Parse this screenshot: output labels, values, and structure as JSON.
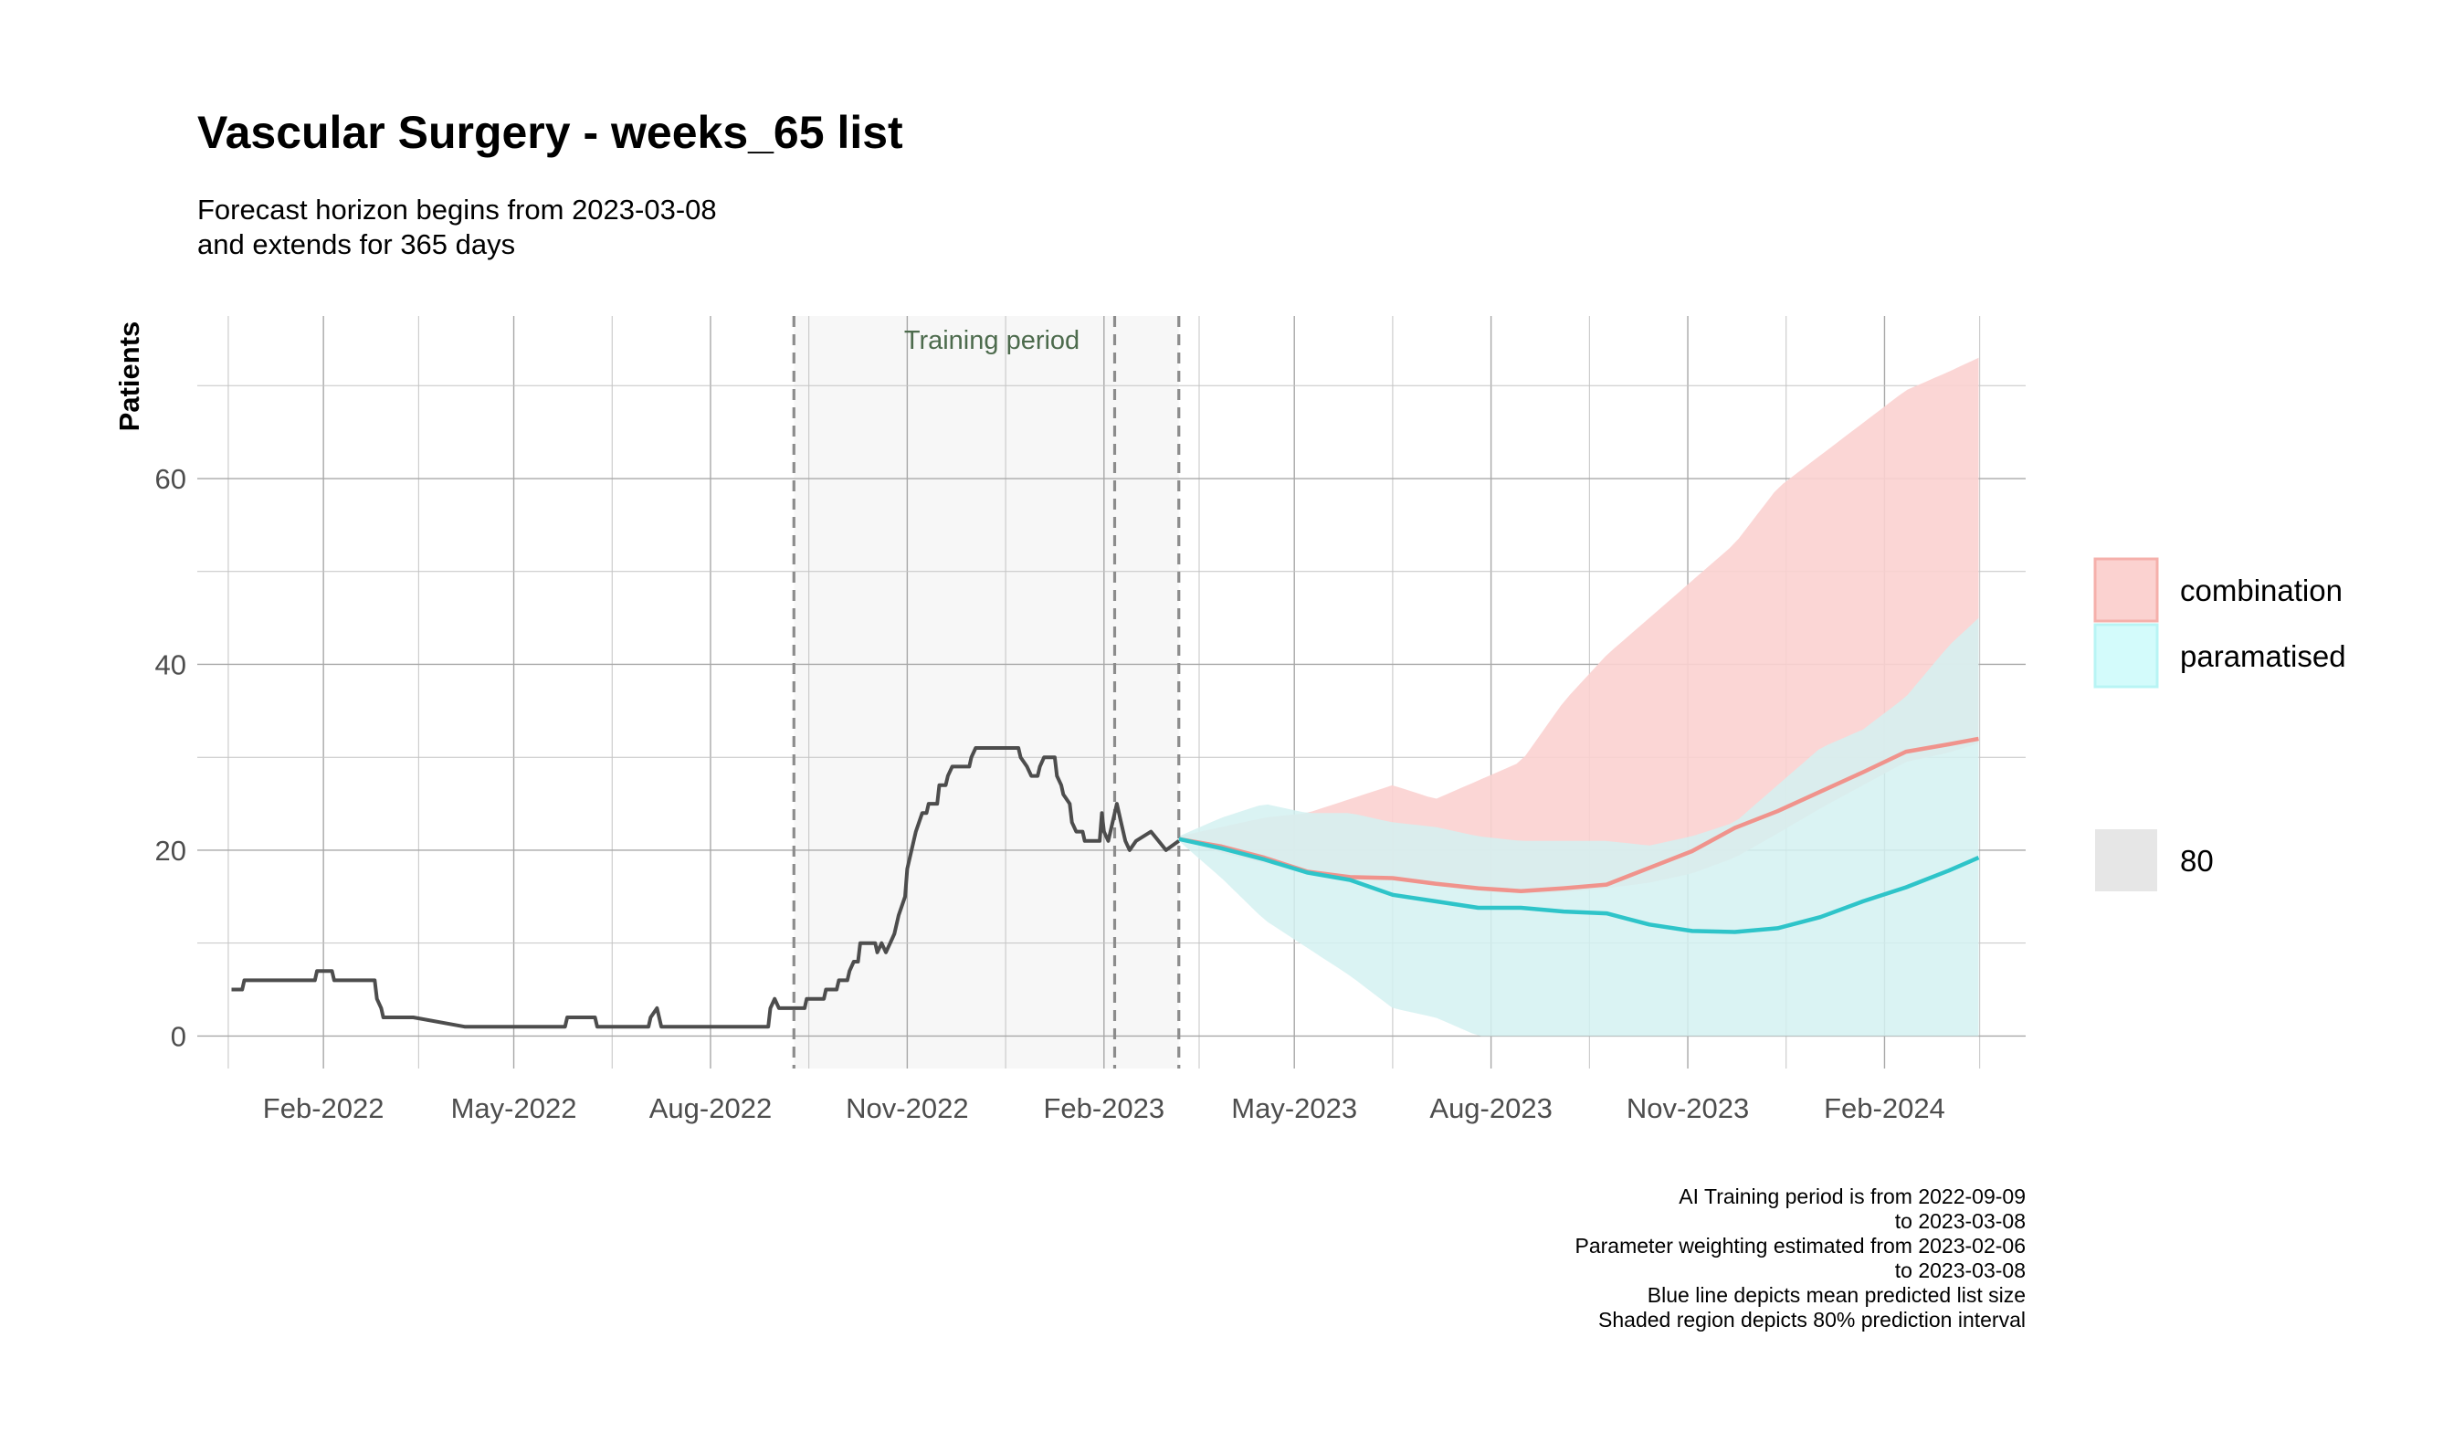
{
  "chart_data": {
    "type": "line",
    "title": "Vascular Surgery - weeks_65 list",
    "subtitle_lines": [
      "Forecast horizon begins from 2023-03-08",
      "and extends for 365 days"
    ],
    "ylabel": "Patients",
    "xlabel": "",
    "x_ticks": [
      {
        "date": "2022-02-01",
        "label": "Feb-2022"
      },
      {
        "date": "2022-05-01",
        "label": "May-2022"
      },
      {
        "date": "2022-08-01",
        "label": "Aug-2022"
      },
      {
        "date": "2022-11-01",
        "label": "Nov-2022"
      },
      {
        "date": "2023-02-01",
        "label": "Feb-2023"
      },
      {
        "date": "2023-05-01",
        "label": "May-2023"
      },
      {
        "date": "2023-08-01",
        "label": "Aug-2023"
      },
      {
        "date": "2023-11-01",
        "label": "Nov-2023"
      },
      {
        "date": "2024-02-01",
        "label": "Feb-2024"
      }
    ],
    "y_ticks": [
      0,
      20,
      40,
      60
    ],
    "xlim": [
      "2021-12-04",
      "2024-04-07"
    ],
    "ylim": [
      -3.5,
      77.5
    ],
    "grid": true,
    "training_period": {
      "start": "2022-09-09",
      "end": "2023-03-08",
      "label": "Training period"
    },
    "vlines_dashed": [
      "2022-09-09",
      "2023-02-06",
      "2023-03-08"
    ],
    "history": {
      "name": "",
      "color": "#4d4d4d",
      "points": [
        [
          "2021-12-20",
          5
        ],
        [
          "2021-12-25",
          5
        ],
        [
          "2021-12-26",
          6
        ],
        [
          "2022-01-28",
          6
        ],
        [
          "2022-01-29",
          7
        ],
        [
          "2022-02-05",
          7
        ],
        [
          "2022-02-06",
          6
        ],
        [
          "2022-02-25",
          6
        ],
        [
          "2022-02-26",
          4
        ],
        [
          "2022-02-28",
          3
        ],
        [
          "2022-03-01",
          2
        ],
        [
          "2022-03-15",
          2
        ],
        [
          "2022-04-08",
          1
        ],
        [
          "2022-05-25",
          1
        ],
        [
          "2022-05-26",
          2
        ],
        [
          "2022-06-08",
          2
        ],
        [
          "2022-06-09",
          1
        ],
        [
          "2022-07-03",
          1
        ],
        [
          "2022-07-04",
          2
        ],
        [
          "2022-07-07",
          3
        ],
        [
          "2022-07-09",
          1
        ],
        [
          "2022-08-28",
          1
        ],
        [
          "2022-08-29",
          3
        ],
        [
          "2022-08-31",
          4
        ],
        [
          "2022-09-02",
          3
        ],
        [
          "2022-09-14",
          3
        ],
        [
          "2022-09-15",
          4
        ],
        [
          "2022-09-23",
          4
        ],
        [
          "2022-09-24",
          5
        ],
        [
          "2022-09-29",
          5
        ],
        [
          "2022-09-30",
          6
        ],
        [
          "2022-10-04",
          6
        ],
        [
          "2022-10-05",
          7
        ],
        [
          "2022-10-07",
          8
        ],
        [
          "2022-10-09",
          8
        ],
        [
          "2022-10-10",
          10
        ],
        [
          "2022-10-17",
          10
        ],
        [
          "2022-10-18",
          9
        ],
        [
          "2022-10-20",
          10
        ],
        [
          "2022-10-22",
          9
        ],
        [
          "2022-10-24",
          10
        ],
        [
          "2022-10-26",
          11
        ],
        [
          "2022-10-28",
          13
        ],
        [
          "2022-10-31",
          15
        ],
        [
          "2022-11-01",
          18
        ],
        [
          "2022-11-03",
          20
        ],
        [
          "2022-11-05",
          22
        ],
        [
          "2022-11-08",
          24
        ],
        [
          "2022-11-10",
          24
        ],
        [
          "2022-11-11",
          25
        ],
        [
          "2022-11-15",
          25
        ],
        [
          "2022-11-16",
          27
        ],
        [
          "2022-11-19",
          27
        ],
        [
          "2022-11-20",
          28
        ],
        [
          "2022-11-22",
          29
        ],
        [
          "2022-11-30",
          29
        ],
        [
          "2022-12-01",
          30
        ],
        [
          "2022-12-03",
          31
        ],
        [
          "2022-12-23",
          31
        ],
        [
          "2022-12-24",
          30
        ],
        [
          "2022-12-27",
          29
        ],
        [
          "2022-12-29",
          28
        ],
        [
          "2023-01-01",
          28
        ],
        [
          "2023-01-02",
          29
        ],
        [
          "2023-01-04",
          30
        ],
        [
          "2023-01-09",
          30
        ],
        [
          "2023-01-10",
          28
        ],
        [
          "2023-01-12",
          27
        ],
        [
          "2023-01-13",
          26
        ],
        [
          "2023-01-16",
          25
        ],
        [
          "2023-01-17",
          23
        ],
        [
          "2023-01-19",
          22
        ],
        [
          "2023-01-22",
          22
        ],
        [
          "2023-01-23",
          21
        ],
        [
          "2023-01-30",
          21
        ],
        [
          "2023-01-31",
          24
        ],
        [
          "2023-02-01",
          22
        ],
        [
          "2023-02-03",
          21
        ],
        [
          "2023-02-07",
          25
        ],
        [
          "2023-02-09",
          23
        ],
        [
          "2023-02-11",
          21
        ],
        [
          "2023-02-13",
          20
        ],
        [
          "2023-02-16",
          21
        ],
        [
          "2023-02-23",
          22
        ],
        [
          "2023-03-02",
          20
        ],
        [
          "2023-03-08",
          21
        ]
      ]
    },
    "forecast_band_level": "80",
    "series": [
      {
        "name": "combination",
        "line_color": "#f0938c",
        "band_color": "#fbd2d0",
        "mean": [
          [
            "2023-03-08",
            21.2
          ],
          [
            "2023-03-28",
            20.4
          ],
          [
            "2023-04-17",
            19.2
          ],
          [
            "2023-05-07",
            17.7
          ],
          [
            "2023-05-27",
            17.1
          ],
          [
            "2023-06-16",
            17.0
          ],
          [
            "2023-07-06",
            16.4
          ],
          [
            "2023-07-26",
            15.9
          ],
          [
            "2023-08-15",
            15.6
          ],
          [
            "2023-09-04",
            15.9
          ],
          [
            "2023-09-24",
            16.3
          ],
          [
            "2023-10-14",
            18.1
          ],
          [
            "2023-11-03",
            19.9
          ],
          [
            "2023-11-23",
            22.4
          ],
          [
            "2023-12-13",
            24.2
          ],
          [
            "2024-01-02",
            26.3
          ],
          [
            "2024-01-22",
            28.4
          ],
          [
            "2024-02-11",
            30.6
          ],
          [
            "2024-03-02",
            31.4
          ],
          [
            "2024-03-16",
            32.0
          ]
        ],
        "lower": [
          [
            "2023-03-08",
            21.2
          ],
          [
            "2023-03-28",
            19.7
          ],
          [
            "2023-04-17",
            18.6
          ],
          [
            "2023-05-07",
            17.5
          ],
          [
            "2023-05-27",
            17.0
          ],
          [
            "2023-06-16",
            16.8
          ],
          [
            "2023-07-06",
            16.2
          ],
          [
            "2023-07-26",
            15.6
          ],
          [
            "2023-08-15",
            15.3
          ],
          [
            "2023-09-04",
            15.5
          ],
          [
            "2023-09-24",
            15.9
          ],
          [
            "2023-10-14",
            16.5
          ],
          [
            "2023-11-03",
            17.5
          ],
          [
            "2023-11-23",
            19.2
          ],
          [
            "2023-12-13",
            21.8
          ],
          [
            "2024-01-02",
            24.5
          ],
          [
            "2024-01-22",
            27.0
          ],
          [
            "2024-02-11",
            29.5
          ],
          [
            "2024-03-02",
            30.5
          ],
          [
            "2024-03-16",
            31.5
          ]
        ],
        "upper": [
          [
            "2023-03-08",
            21.5
          ],
          [
            "2023-03-28",
            22.5
          ],
          [
            "2023-04-17",
            23.5
          ],
          [
            "2023-05-07",
            24.0
          ],
          [
            "2023-05-27",
            25.5
          ],
          [
            "2023-06-16",
            27.0
          ],
          [
            "2023-07-06",
            25.5
          ],
          [
            "2023-07-26",
            27.5
          ],
          [
            "2023-08-15",
            29.5
          ],
          [
            "2023-09-04",
            36.0
          ],
          [
            "2023-09-24",
            41.0
          ],
          [
            "2023-10-14",
            45.0
          ],
          [
            "2023-11-03",
            49.0
          ],
          [
            "2023-11-23",
            53.0
          ],
          [
            "2023-12-13",
            59.0
          ],
          [
            "2024-01-02",
            62.5
          ],
          [
            "2024-01-22",
            66.0
          ],
          [
            "2024-02-11",
            69.5
          ],
          [
            "2024-03-02",
            71.5
          ],
          [
            "2024-03-16",
            73.0
          ]
        ]
      },
      {
        "name": "paramatised",
        "line_color": "#2ec4c9",
        "band_color": "#d3f1f1",
        "mean": [
          [
            "2023-03-08",
            21.2
          ],
          [
            "2023-03-28",
            20.2
          ],
          [
            "2023-04-17",
            19.0
          ],
          [
            "2023-05-07",
            17.6
          ],
          [
            "2023-05-27",
            16.8
          ],
          [
            "2023-06-16",
            15.2
          ],
          [
            "2023-07-06",
            14.5
          ],
          [
            "2023-07-26",
            13.8
          ],
          [
            "2023-08-15",
            13.8
          ],
          [
            "2023-09-04",
            13.4
          ],
          [
            "2023-09-24",
            13.2
          ],
          [
            "2023-10-14",
            12.0
          ],
          [
            "2023-11-03",
            11.3
          ],
          [
            "2023-11-23",
            11.2
          ],
          [
            "2023-12-13",
            11.6
          ],
          [
            "2024-01-02",
            12.8
          ],
          [
            "2024-01-22",
            14.5
          ],
          [
            "2024-02-11",
            16.0
          ],
          [
            "2024-03-02",
            17.8
          ],
          [
            "2024-03-16",
            19.2
          ]
        ],
        "lower": [
          [
            "2023-03-08",
            21.0
          ],
          [
            "2023-03-28",
            17.0
          ],
          [
            "2023-04-17",
            12.5
          ],
          [
            "2023-05-07",
            9.5
          ],
          [
            "2023-05-27",
            6.5
          ],
          [
            "2023-06-16",
            3.0
          ],
          [
            "2023-07-06",
            2.0
          ],
          [
            "2023-07-26",
            0.0
          ],
          [
            "2024-03-16",
            0.0
          ]
        ],
        "upper": [
          [
            "2023-03-08",
            21.5
          ],
          [
            "2023-03-28",
            23.5
          ],
          [
            "2023-04-17",
            25.0
          ],
          [
            "2023-05-07",
            24.0
          ],
          [
            "2023-05-27",
            24.0
          ],
          [
            "2023-06-16",
            23.0
          ],
          [
            "2023-07-06",
            22.5
          ],
          [
            "2023-07-26",
            21.5
          ],
          [
            "2023-08-15",
            21.0
          ],
          [
            "2023-09-04",
            21.0
          ],
          [
            "2023-09-24",
            21.0
          ],
          [
            "2023-10-14",
            20.5
          ],
          [
            "2023-11-03",
            21.5
          ],
          [
            "2023-11-23",
            23.0
          ],
          [
            "2023-12-13",
            27.0
          ],
          [
            "2024-01-02",
            31.0
          ],
          [
            "2024-01-22",
            33.0
          ],
          [
            "2024-02-11",
            36.5
          ],
          [
            "2024-03-02",
            42.0
          ],
          [
            "2024-03-16",
            45.0
          ]
        ]
      }
    ],
    "legend": {
      "placement": "right",
      "items": [
        {
          "label": "combination",
          "fill": "#fbd2d0",
          "stroke": "#f5b0ab"
        },
        {
          "label": "paramatised",
          "fill": "#d3fbfb",
          "stroke": "#b8f4f4"
        }
      ],
      "level_item": {
        "label": "80",
        "fill": "#e6e6e6"
      }
    },
    "caption_lines": [
      "AI Training period is from 2022-09-09",
      "to 2023-03-08",
      "Parameter weighting estimated from 2023-02-06",
      "to 2023-03-08",
      "Blue line depicts mean predicted list size",
      "Shaded region depicts 80% prediction interval"
    ]
  }
}
